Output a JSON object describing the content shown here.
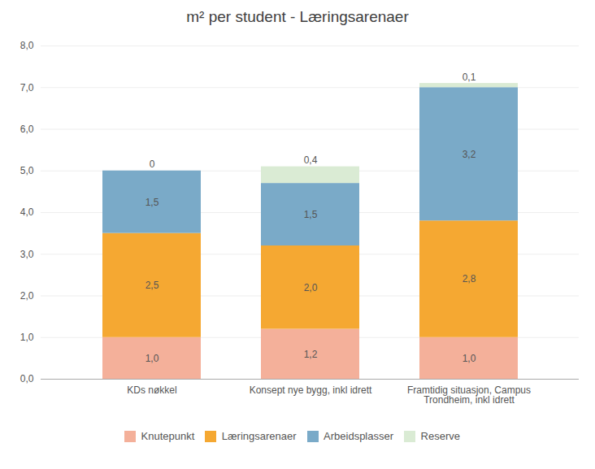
{
  "chart_data": {
    "type": "bar",
    "title": "m² per student - Læringsarenaer",
    "stacked": true,
    "categories": [
      "KDs nøkkel",
      "Konsept nye bygg, inkl idrett",
      "Framtidig situasjon, Campus\nTrondheim, inkl idrett"
    ],
    "series": [
      {
        "name": "Knutepunkt",
        "color": "#f4b09a",
        "values": [
          1.0,
          1.2,
          1.0
        ],
        "value_labels": [
          "1,0",
          "1,2",
          "1,0"
        ]
      },
      {
        "name": "Læringsarenaer",
        "color": "#f5a832",
        "values": [
          2.5,
          2.0,
          2.8
        ],
        "value_labels": [
          "2,5",
          "2,0",
          "2,8"
        ]
      },
      {
        "name": "Arbeidsplasser",
        "color": "#7aaac8",
        "values": [
          1.5,
          1.5,
          3.2
        ],
        "value_labels": [
          "1,5",
          "1,5",
          "3,2"
        ]
      },
      {
        "name": "Reserve",
        "color": "#daebd4",
        "values": [
          0.0,
          0.4,
          0.1
        ],
        "value_labels": [
          "0",
          "0,4",
          "0,1"
        ]
      }
    ],
    "ylim": [
      0,
      8.0
    ],
    "yticks": [
      {
        "value": 0,
        "label": "0,0"
      },
      {
        "value": 1,
        "label": "1,0"
      },
      {
        "value": 2,
        "label": "2,0"
      },
      {
        "value": 3,
        "label": "3,0"
      },
      {
        "value": 4,
        "label": "4,0"
      },
      {
        "value": 5,
        "label": "5,0"
      },
      {
        "value": 6,
        "label": "6,0"
      },
      {
        "value": 7,
        "label": "7,0"
      },
      {
        "value": 8,
        "label": "8,0"
      }
    ],
    "grid": true,
    "legend": "bottom",
    "data_labels": true
  }
}
